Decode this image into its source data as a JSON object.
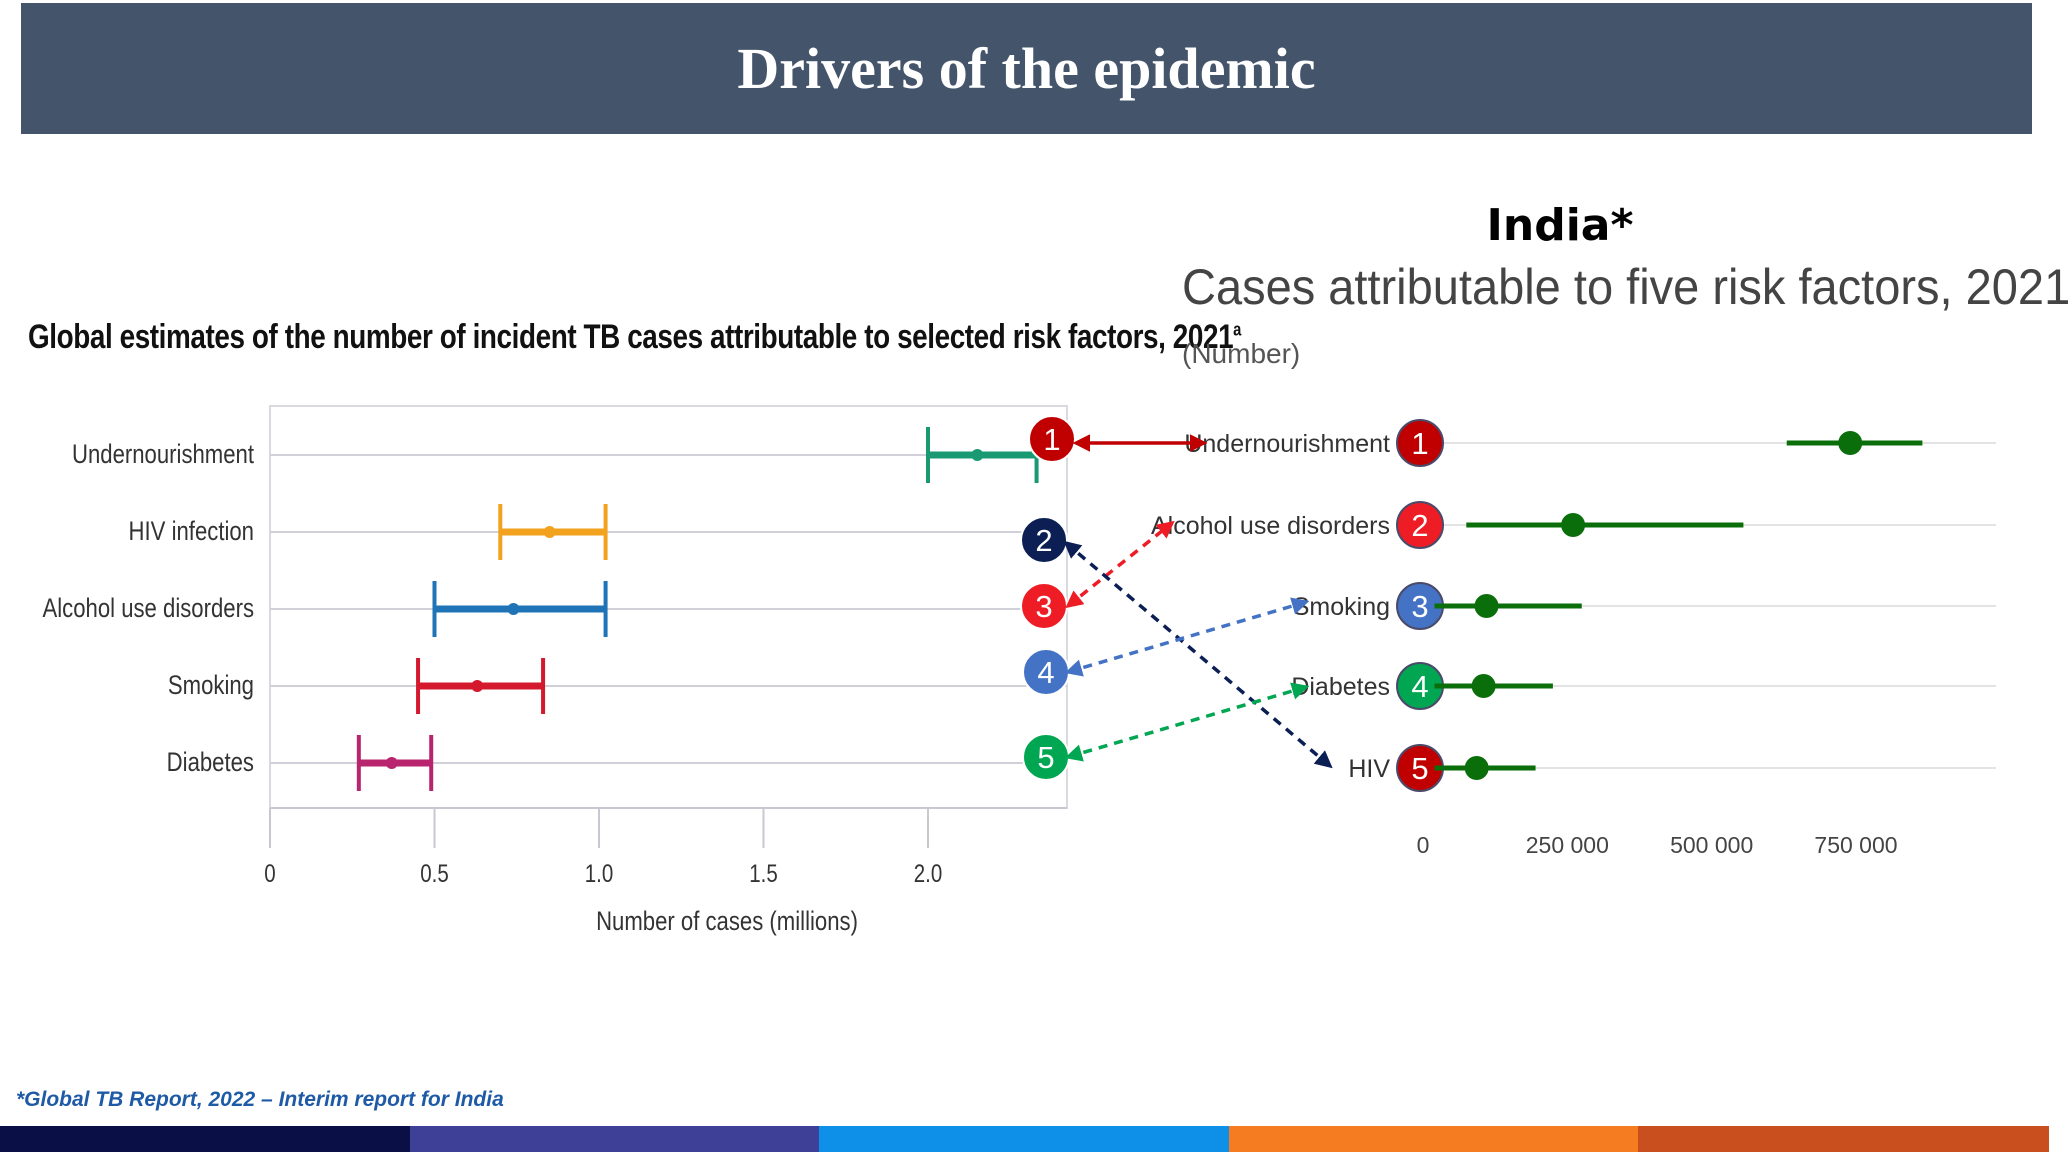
{
  "header": {
    "title": "Drivers of the epidemic"
  },
  "footnote": "*Global TB Report, 2022 – Interim report for India",
  "footer_colors": [
    "#0a0f45",
    "#3e3f97",
    "#0e8fe8",
    "#f57c20",
    "#c9501e"
  ],
  "india_label": "India*",
  "chart_data": [
    {
      "type": "interval",
      "title": "Global estimates of the number of incident TB cases attributable to selected risk factors, 2021",
      "title_sup": "a",
      "xlabel": "Number of cases (millions)",
      "ylabel": "",
      "xlim": [
        0,
        2.4
      ],
      "xticks": [
        0,
        0.5,
        1.0,
        1.5,
        2.0
      ],
      "xtick_labels": [
        "0",
        "0.5",
        "1.0",
        "1.5",
        "2.0"
      ],
      "grid": true,
      "series": [
        {
          "name": "Undernourishment",
          "point": 2.15,
          "low": 2.0,
          "high": 2.33,
          "color": "#1a9a72"
        },
        {
          "name": "HIV infection",
          "point": 0.85,
          "low": 0.7,
          "high": 1.02,
          "color": "#f2a21c"
        },
        {
          "name": "Alcohol use disorders",
          "point": 0.74,
          "low": 0.5,
          "high": 1.02,
          "color": "#1f73b7"
        },
        {
          "name": "Smoking",
          "point": 0.63,
          "low": 0.45,
          "high": 0.83,
          "color": "#d4192e"
        },
        {
          "name": "Diabetes",
          "point": 0.37,
          "low": 0.27,
          "high": 0.49,
          "color": "#b8246e"
        }
      ],
      "rank_badges": [
        {
          "label": "1",
          "color": "#c00000"
        },
        {
          "label": "2",
          "color": "#0b1f55"
        },
        {
          "label": "3",
          "color": "#ee1c25"
        },
        {
          "label": "4",
          "color": "#4472c4"
        },
        {
          "label": "5",
          "color": "#00a651"
        }
      ]
    },
    {
      "type": "interval",
      "title": "Cases attributable to five risk factors, 2021",
      "subtitle": "(Number)",
      "xlabel": "",
      "xlim": [
        0,
        1000000
      ],
      "xticks": [
        0,
        250000,
        500000,
        750000
      ],
      "xtick_labels": [
        "0",
        "250 000",
        "500 000",
        "750 000"
      ],
      "grid": true,
      "color": "#0a6e0a",
      "series": [
        {
          "name": "Undernourishment",
          "rank": "1",
          "badge_color": "#c00000",
          "point": 740000,
          "low": 630000,
          "high": 865000
        },
        {
          "name": "Alcohol use disorders",
          "rank": "2",
          "badge_color": "#ee1c25",
          "point": 260000,
          "low": 75000,
          "high": 555000
        },
        {
          "name": "Smoking",
          "rank": "3",
          "badge_color": "#4472c4",
          "point": 110000,
          "low": 20000,
          "high": 275000
        },
        {
          "name": "Diabetes",
          "rank": "4",
          "badge_color": "#00a651",
          "point": 105000,
          "low": 20000,
          "high": 225000
        },
        {
          "name": "HIV",
          "rank": "5",
          "badge_color": "#c00000",
          "point": 93000,
          "low": 20000,
          "high": 195000
        }
      ]
    }
  ]
}
